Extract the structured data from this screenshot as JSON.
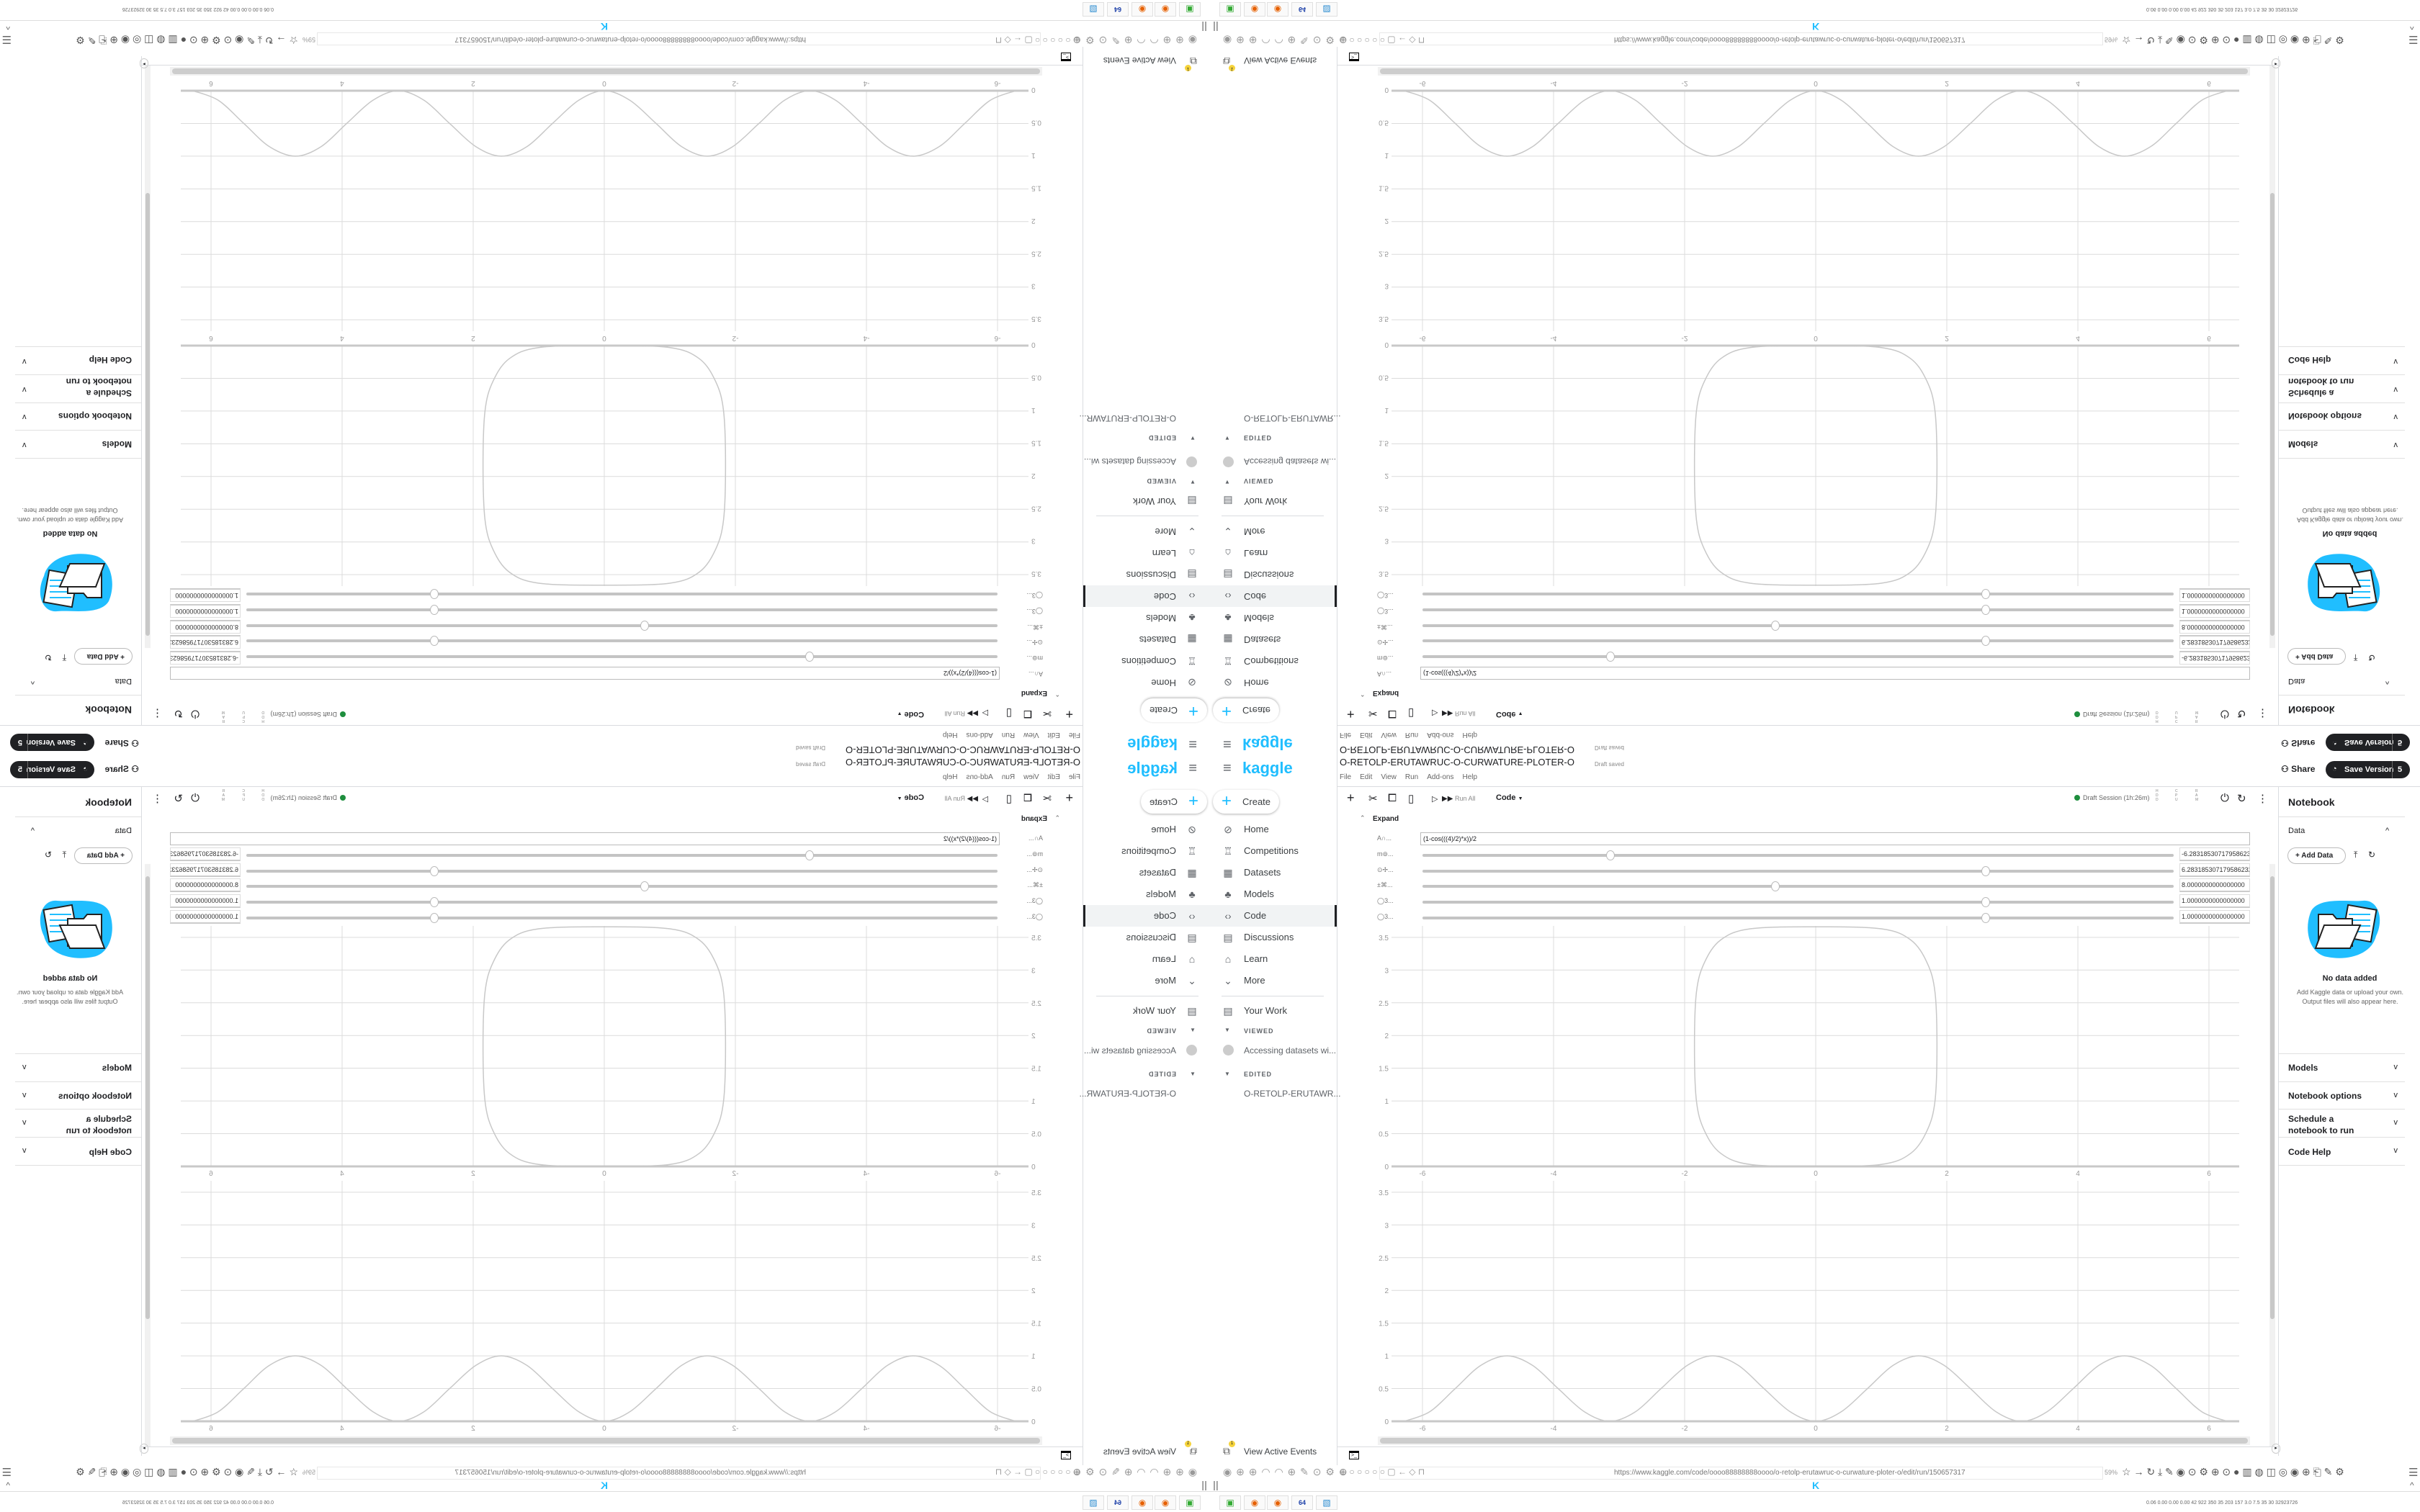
{
  "browser": {
    "url": "https://www.kaggle.com/code/oooo88888888oooo/o-retolp-erutawruc-o-curwature-ploter-o/edit/run/150657317",
    "zoom": "59%",
    "stats": "0.06 0.00 0.00 0.00 42 922 350 35 203 157 3.0 7.5 35 30 32923726",
    "left_icons": "⊕ ○ ○ ○ ○ ○ ▢ ← ◇ ⊓",
    "ext_icons": "☆ → ↻ ⤓ ✎ ◉ ⊙ ⚙ ⊕ ⊙ ● ▥ ◍ ◫ ◎ ◉ ⊕ ⎗ ✎ ⚙",
    "menu_icon": "☰",
    "up_icon": "^",
    "pause_icon": "||",
    "favicon": "K",
    "center_icons": "◉ ⊕ ⊕ ◠ ◠ ⊕ ✎ ⊙ ⚙ ⊕",
    "taskbar": [
      "▣",
      "◉",
      "◉",
      "64",
      "▧"
    ]
  },
  "nav": {
    "menu_icon": "≡",
    "logo": "kaggle",
    "create": "Create",
    "items": [
      {
        "label": "Home",
        "icon": "⊘"
      },
      {
        "label": "Competitions",
        "icon": "♖"
      },
      {
        "label": "Datasets",
        "icon": "▦"
      },
      {
        "label": "Models",
        "icon": "♣"
      },
      {
        "label": "Code",
        "icon": "‹›"
      },
      {
        "label": "Discussions",
        "icon": "▤"
      },
      {
        "label": "Learn",
        "icon": "⌂"
      },
      {
        "label": "More",
        "icon": "⌄"
      }
    ],
    "your_work": "Your Work",
    "viewed": "VIEWED",
    "viewed_item": "Accessing datasets wi...",
    "edited": "EDITED",
    "edited_item": "O-RETOLP-ERUTAWR...",
    "active_events": "View Active Events",
    "events_badge": "1"
  },
  "notebook": {
    "title": "O-RETOLP-ERUTAWRUC-O-CURWATURE-PLOTER-O",
    "status": "Draft saved",
    "menu": [
      "File",
      "Edit",
      "View",
      "Run",
      "Add-ons",
      "Help"
    ],
    "share": "Share",
    "save_version": "Save Version",
    "version_count": "5",
    "toolbar": {
      "run_all": "Run All",
      "cell_type": "Code",
      "session": "Draft Session (1h:26m)",
      "hdd": "H D D",
      "cpu": "C P U",
      "ram": "R A M"
    },
    "expand": "Expand",
    "formula_label": "A∩...",
    "formula": "(1-cos(((4)/2)*x))/2",
    "controls": [
      {
        "label": "m⊚...",
        "value": "-6.283185307179586232",
        "fraction": 0.25
      },
      {
        "label": "⊙✢...",
        "value": "6.283185307179586232",
        "fraction": 0.75
      },
      {
        "label": "±⌘...",
        "value": "8.0000000000000000",
        "fraction": 0.47
      },
      {
        "label": "◯3...",
        "value": "1.0000000000000000",
        "fraction": 0.75
      },
      {
        "label": "◯3...",
        "value": "1.0000000000000000",
        "fraction": 0.75
      }
    ]
  },
  "sidebar": {
    "title": "Notebook",
    "data": "Data",
    "add_data": "Add Data",
    "empty_title": "No data added",
    "empty_text": "Add Kaggle data or upload your own. Output files will also appear here.",
    "sections": [
      "Models",
      "Notebook options",
      "Schedule a notebook to run",
      "Code Help"
    ]
  },
  "colors": {
    "brand": "#20beff",
    "session": "#1e8e3e",
    "button_dark": "#202124",
    "curve": "#c8c8c8",
    "grid": "#dcdcdc"
  },
  "chart_data": [
    {
      "type": "line",
      "xlim": [
        -6.5,
        6.5
      ],
      "ylim": [
        0,
        3.67
      ],
      "xticks": [
        "-6",
        "-4",
        "-2",
        "0",
        "2",
        "4",
        "6"
      ],
      "yticks": [
        "0",
        "0.5",
        "1",
        "1.5",
        "2",
        "2.5",
        "3",
        "3.5"
      ],
      "grid": true,
      "series": [
        {
          "closed": true,
          "points": [
            [
              0,
              0
            ],
            [
              1.0,
              0.03
            ],
            [
              1.45,
              0.2
            ],
            [
              1.7,
              0.55
            ],
            [
              1.82,
              1.0
            ],
            [
              1.85,
              1.83
            ],
            [
              1.82,
              2.66
            ],
            [
              1.7,
              3.11
            ],
            [
              1.45,
              3.46
            ],
            [
              1.0,
              3.63
            ],
            [
              0,
              3.66
            ],
            [
              -1.0,
              3.63
            ],
            [
              -1.45,
              3.46
            ],
            [
              -1.7,
              3.11
            ],
            [
              -1.82,
              2.66
            ],
            [
              -1.85,
              1.83
            ],
            [
              -1.82,
              1.0
            ],
            [
              -1.7,
              0.55
            ],
            [
              -1.45,
              0.2
            ],
            [
              -1.0,
              0.03
            ]
          ]
        }
      ]
    },
    {
      "type": "line",
      "xlim": [
        -6.5,
        6.5
      ],
      "ylim": [
        0,
        3.67
      ],
      "xticks": [
        "-6",
        "-4",
        "-2",
        "0",
        "2",
        "4",
        "6"
      ],
      "yticks": [
        "0",
        "0.5",
        "1",
        "1.5",
        "2",
        "2.5",
        "3",
        "3.5"
      ],
      "grid": true,
      "series": [
        {
          "closed": false,
          "points": [
            [
              -6.28,
              0
            ],
            [
              -5.89,
              0.146
            ],
            [
              -5.5,
              0.5
            ],
            [
              -5.11,
              0.854
            ],
            [
              -4.71,
              1
            ],
            [
              -4.32,
              0.854
            ],
            [
              -3.93,
              0.5
            ],
            [
              -3.53,
              0.146
            ],
            [
              -3.14,
              0
            ],
            [
              -2.75,
              0.146
            ],
            [
              -2.36,
              0.5
            ],
            [
              -1.96,
              0.854
            ],
            [
              -1.57,
              1
            ],
            [
              -1.18,
              0.854
            ],
            [
              -0.79,
              0.5
            ],
            [
              -0.39,
              0.146
            ],
            [
              0,
              0
            ],
            [
              0.39,
              0.146
            ],
            [
              0.79,
              0.5
            ],
            [
              1.18,
              0.854
            ],
            [
              1.57,
              1
            ],
            [
              1.96,
              0.854
            ],
            [
              2.36,
              0.5
            ],
            [
              2.75,
              0.146
            ],
            [
              3.14,
              0
            ],
            [
              3.53,
              0.146
            ],
            [
              3.93,
              0.5
            ],
            [
              4.32,
              0.854
            ],
            [
              4.71,
              1
            ],
            [
              5.11,
              0.854
            ],
            [
              5.5,
              0.5
            ],
            [
              5.89,
              0.146
            ],
            [
              6.28,
              0
            ]
          ]
        }
      ]
    }
  ]
}
